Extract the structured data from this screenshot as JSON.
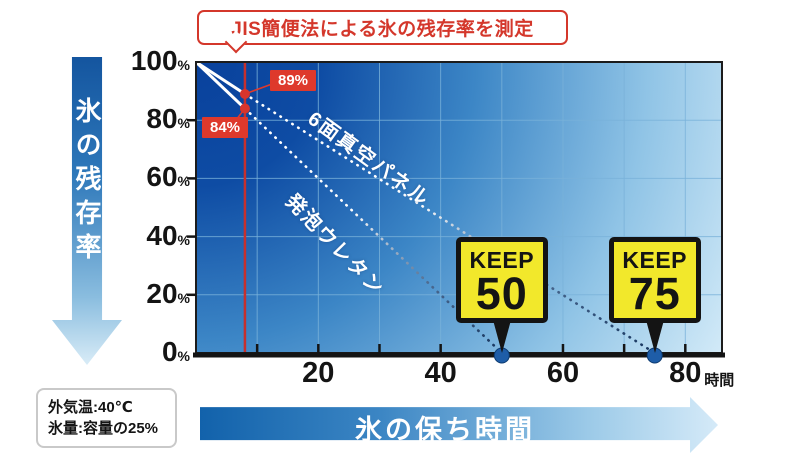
{
  "title_bubble": {
    "text": "JIS簡便法による氷の残存率を測定"
  },
  "y_axis_arrow": {
    "label": "氷の残存率"
  },
  "x_axis_arrow": {
    "label": "氷の保ち時間"
  },
  "conditions_box": {
    "line1": "外気温:40℃",
    "line2": "氷量:容量の25%"
  },
  "chart_data": {
    "type": "line",
    "title": "JIS簡便法による氷の残存率を測定",
    "xlabel": "氷の保ち時間",
    "ylabel": "氷の残存率",
    "x_unit": "時間",
    "xlim": [
      0,
      86
    ],
    "ylim": [
      0,
      100
    ],
    "x_tick_labels": [
      20,
      40,
      60,
      80
    ],
    "x_minor_tick_step": 10,
    "y_tick_labels": [
      100,
      80,
      60,
      40,
      20,
      0
    ],
    "y_tick_suffix": "%",
    "grid": {
      "vertical_every": 10,
      "horizontal_every": 20,
      "on": true
    },
    "legend_position": "on-line-labels",
    "measurement_line_x": 8,
    "series": [
      {
        "name": "6面真空パネル",
        "points": [
          [
            0,
            100
          ],
          [
            8,
            89
          ],
          [
            75,
            0
          ]
        ],
        "solid_until_x": 8,
        "keep_hours_at_zero": 75,
        "badge": {
          "word": "KEEP",
          "hours": "75"
        }
      },
      {
        "name": "発泡ウレタン",
        "points": [
          [
            0,
            100
          ],
          [
            8,
            84
          ],
          [
            50,
            0
          ]
        ],
        "solid_until_x": 8,
        "keep_hours_at_zero": 50,
        "badge": {
          "word": "KEEP",
          "hours": "50"
        }
      }
    ],
    "callouts": [
      {
        "text": "89%",
        "at": [
          8,
          89
        ]
      },
      {
        "text": "84%",
        "at": [
          8,
          84
        ]
      }
    ]
  },
  "colors": {
    "accent_red": "#d4372b",
    "badge_red": "#de392c",
    "line_red": "#c5302e",
    "dot_red": "#d8352c",
    "keep_yellow": "#f2e82b",
    "keep_border": "#141414",
    "dot_blue": "#1e5da8",
    "dot_blue_edge": "#0c3a70",
    "grid_blue": "#79b2da",
    "axis_black": "#141414",
    "series_white": "#ffffff",
    "series_fade_dark": "#16355e",
    "plot_gradient": [
      "#09419c",
      "#0e4ca4",
      "#3c86c6",
      "#90c4e6",
      "#dbeffa"
    ]
  }
}
